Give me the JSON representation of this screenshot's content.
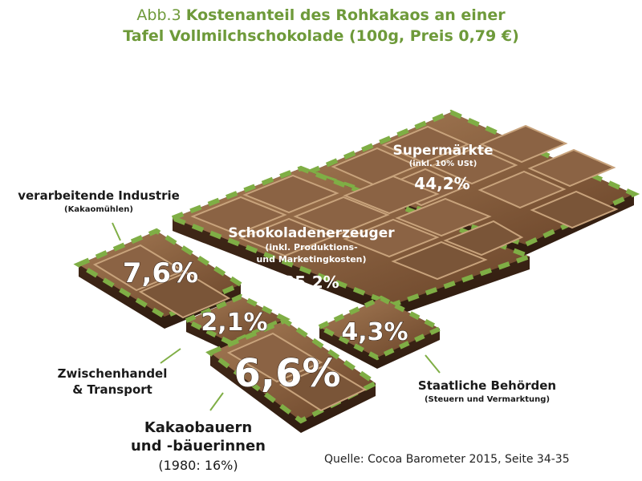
{
  "title": {
    "prefix": "Abb.3",
    "line1": "Kostenanteil des Rohkakaos an einer",
    "line2": "Tafel Vollmilchschokolade (100g, Preis 0,79 €)"
  },
  "colors": {
    "accent_green": "#6e9a3a",
    "dash_green": "#7fae45",
    "chocolate_dark": "#5a3a24",
    "chocolate_mid": "#8b6344",
    "chocolate_light": "#c8a37c"
  },
  "chart_data": {
    "type": "pie",
    "total_label": "100g, Preis 0,79 €",
    "slices": [
      {
        "label": "Supermärkte",
        "note": "(inkl. 10% USt)",
        "value": 44.2,
        "value_text": "44,2%"
      },
      {
        "label": "Schokoladenerzeuger",
        "note_line1": "(inkl. Produktions-",
        "note_line2": "und Marketingkosten)",
        "value": 35.2,
        "value_text": "35,2%"
      },
      {
        "label": "verarbeitende Industrie",
        "note": "(Kakaomühlen)",
        "value": 7.6,
        "value_text": "7,6%"
      },
      {
        "label_line1": "Kakaobauern",
        "label_line2": "und -bäuerinnen",
        "note": "(1980: 16%)",
        "value": 6.6,
        "value_text": "6,6%"
      },
      {
        "label": "Staatliche Behörden",
        "note": "(Steuern und Vermarktung)",
        "value": 4.3,
        "value_text": "4,3%"
      },
      {
        "label_line1": "Zwischenhandel",
        "label_line2": "& Transport",
        "value": 2.1,
        "value_text": "2,1%"
      }
    ]
  },
  "source": "Quelle: Cocoa Barometer 2015, Seite 34-35"
}
